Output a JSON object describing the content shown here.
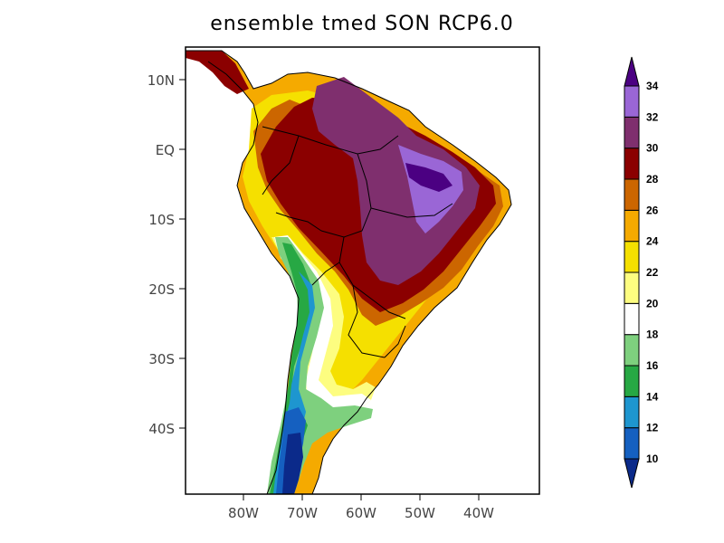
{
  "title": "ensemble tmed SON RCP6.0",
  "lat_ticks": [
    "10N",
    "EQ",
    "10S",
    "20S",
    "30S",
    "40S"
  ],
  "lon_ticks": [
    "80W",
    "70W",
    "60W",
    "50W",
    "40W"
  ],
  "colorbar": {
    "labels": [
      "10",
      "12",
      "14",
      "16",
      "18",
      "20",
      "22",
      "24",
      "26",
      "28",
      "30",
      "32",
      "34"
    ],
    "colors": [
      "#0b2a8a",
      "#1560c0",
      "#1e96cf",
      "#27a844",
      "#7ed07e",
      "#ffffff",
      "#fdfd80",
      "#f5e000",
      "#f5aa00",
      "#cc6600",
      "#8b0000",
      "#7f2f6e",
      "#9a66d6",
      "#4b0082"
    ]
  }
}
